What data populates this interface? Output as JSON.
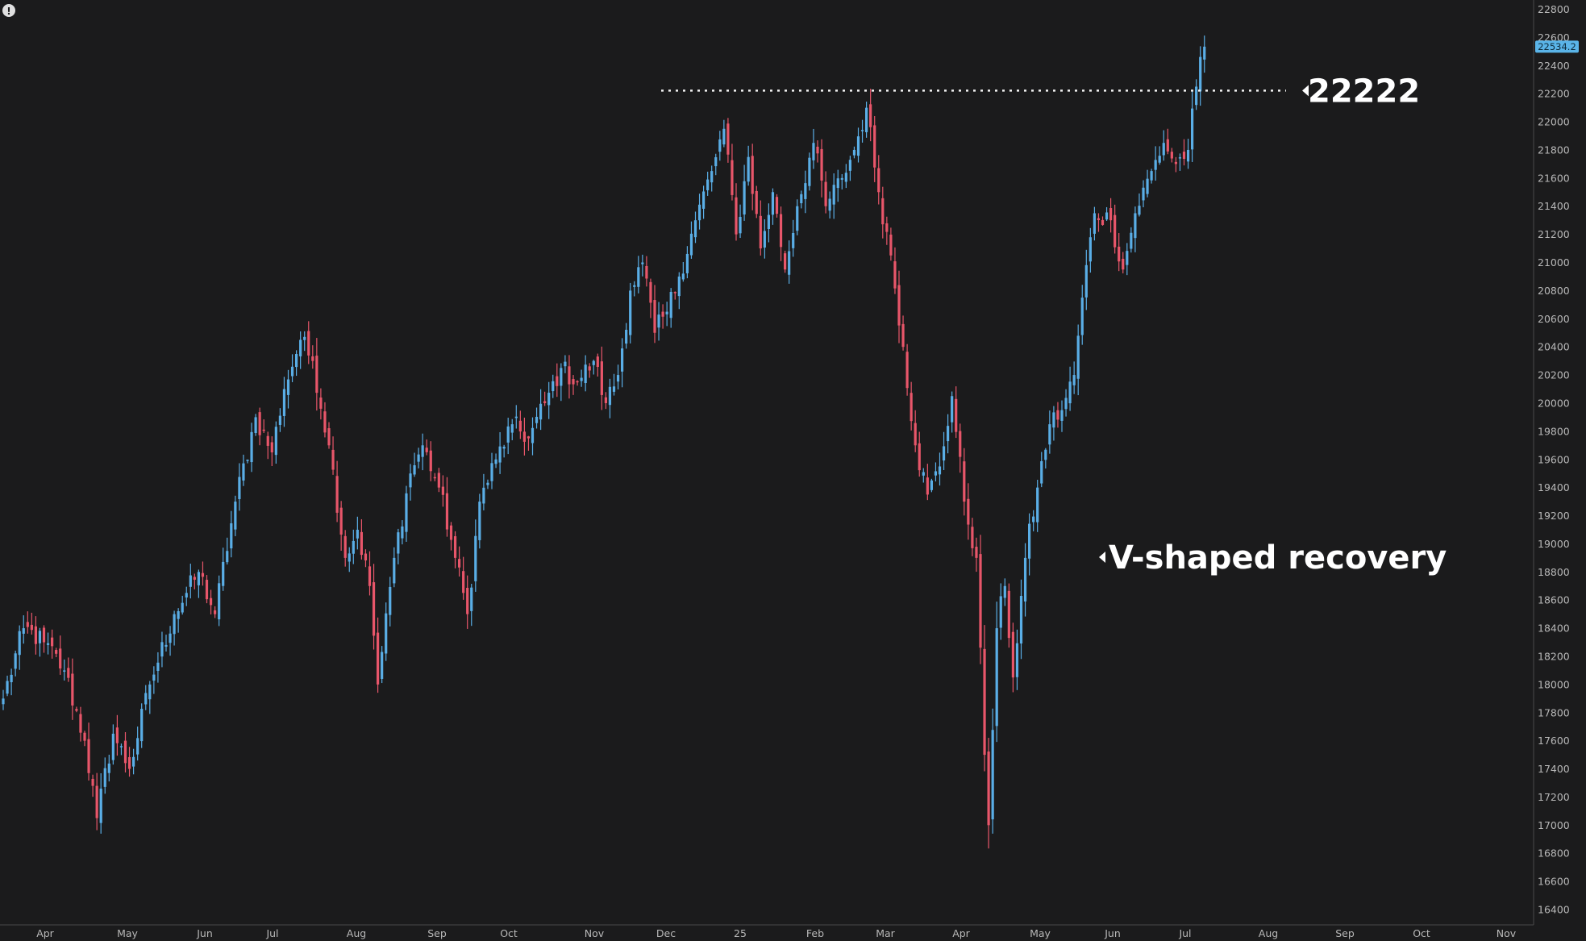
{
  "chart_data": {
    "type": "candlestick",
    "title": "",
    "xlabel": "",
    "ylabel": "",
    "ylim": [
      16350,
      22850
    ],
    "y_ticks": [
      16400,
      16600,
      16800,
      17000,
      17200,
      17400,
      17600,
      17800,
      18000,
      18200,
      18400,
      18600,
      18800,
      19000,
      19200,
      19400,
      19600,
      19800,
      20000,
      20200,
      20400,
      20600,
      20800,
      21000,
      21200,
      21400,
      21600,
      21800,
      22000,
      22200,
      22400,
      22600,
      22800
    ],
    "x_labels": [
      "Apr",
      "May",
      "Jun",
      "Jul",
      "Aug",
      "Sep",
      "Oct",
      "Nov",
      "Dec",
      "25",
      "Feb",
      "Mar",
      "Apr",
      "May",
      "Jun",
      "Jul",
      "Aug",
      "Sep",
      "Oct",
      "Nov"
    ],
    "last_price": "22534.2",
    "up_color": "#5aaee6",
    "down_color": "#e8566a",
    "grid": false,
    "anchors": [
      {
        "x": 0,
        "y": 17900
      },
      {
        "x": 5,
        "y": 18400
      },
      {
        "x": 10,
        "y": 18300
      },
      {
        "x": 15,
        "y": 18100
      },
      {
        "x": 20,
        "y": 17600
      },
      {
        "x": 23,
        "y": 17050
      },
      {
        "x": 27,
        "y": 17650
      },
      {
        "x": 31,
        "y": 17400
      },
      {
        "x": 36,
        "y": 18000
      },
      {
        "x": 42,
        "y": 18500
      },
      {
        "x": 48,
        "y": 18800
      },
      {
        "x": 52,
        "y": 18500
      },
      {
        "x": 57,
        "y": 19300
      },
      {
        "x": 62,
        "y": 19900
      },
      {
        "x": 66,
        "y": 19650
      },
      {
        "x": 69,
        "y": 20100
      },
      {
        "x": 73,
        "y": 20450
      },
      {
        "x": 76,
        "y": 20300
      },
      {
        "x": 80,
        "y": 19700
      },
      {
        "x": 84,
        "y": 18900
      },
      {
        "x": 87,
        "y": 19100
      },
      {
        "x": 90,
        "y": 18700
      },
      {
        "x": 92,
        "y": 18000
      },
      {
        "x": 96,
        "y": 18900
      },
      {
        "x": 100,
        "y": 19500
      },
      {
        "x": 103,
        "y": 19700
      },
      {
        "x": 107,
        "y": 19400
      },
      {
        "x": 111,
        "y": 18900
      },
      {
        "x": 114,
        "y": 18500
      },
      {
        "x": 117,
        "y": 19300
      },
      {
        "x": 121,
        "y": 19600
      },
      {
        "x": 125,
        "y": 19850
      },
      {
        "x": 129,
        "y": 19750
      },
      {
        "x": 133,
        "y": 20000
      },
      {
        "x": 137,
        "y": 20250
      },
      {
        "x": 141,
        "y": 20150
      },
      {
        "x": 145,
        "y": 20300
      },
      {
        "x": 148,
        "y": 20000
      },
      {
        "x": 151,
        "y": 20200
      },
      {
        "x": 154,
        "y": 20800
      },
      {
        "x": 157,
        "y": 21000
      },
      {
        "x": 160,
        "y": 20500
      },
      {
        "x": 163,
        "y": 20650
      },
      {
        "x": 166,
        "y": 20900
      },
      {
        "x": 170,
        "y": 21300
      },
      {
        "x": 174,
        "y": 21650
      },
      {
        "x": 177,
        "y": 21950
      },
      {
        "x": 180,
        "y": 21200
      },
      {
        "x": 183,
        "y": 21750
      },
      {
        "x": 186,
        "y": 21100
      },
      {
        "x": 189,
        "y": 21500
      },
      {
        "x": 192,
        "y": 20950
      },
      {
        "x": 195,
        "y": 21400
      },
      {
        "x": 199,
        "y": 21850
      },
      {
        "x": 202,
        "y": 21400
      },
      {
        "x": 206,
        "y": 21600
      },
      {
        "x": 209,
        "y": 21800
      },
      {
        "x": 212,
        "y": 22100
      },
      {
        "x": 215,
        "y": 21500
      },
      {
        "x": 218,
        "y": 21050
      },
      {
        "x": 221,
        "y": 20400
      },
      {
        "x": 224,
        "y": 19700
      },
      {
        "x": 227,
        "y": 19350
      },
      {
        "x": 230,
        "y": 19550
      },
      {
        "x": 233,
        "y": 20050
      },
      {
        "x": 236,
        "y": 19300
      },
      {
        "x": 239,
        "y": 18900
      },
      {
        "x": 241,
        "y": 17500
      },
      {
        "x": 242,
        "y": 17000
      },
      {
        "x": 244,
        "y": 18400
      },
      {
        "x": 246,
        "y": 18700
      },
      {
        "x": 248,
        "y": 18050
      },
      {
        "x": 251,
        "y": 18900
      },
      {
        "x": 254,
        "y": 19400
      },
      {
        "x": 257,
        "y": 19850
      },
      {
        "x": 260,
        "y": 19950
      },
      {
        "x": 263,
        "y": 20200
      },
      {
        "x": 265,
        "y": 20750
      },
      {
        "x": 268,
        "y": 21350
      },
      {
        "x": 272,
        "y": 21300
      },
      {
        "x": 275,
        "y": 20950
      },
      {
        "x": 278,
        "y": 21350
      },
      {
        "x": 282,
        "y": 21650
      },
      {
        "x": 285,
        "y": 21850
      },
      {
        "x": 288,
        "y": 21700
      },
      {
        "x": 291,
        "y": 21800
      },
      {
        "x": 293,
        "y": 22250
      },
      {
        "x": 295,
        "y": 22534.2
      }
    ]
  },
  "annotations": {
    "level_label": "22222",
    "level_value": 22222,
    "recovery_label": "V-shaped recovery"
  },
  "info_icon": "!"
}
